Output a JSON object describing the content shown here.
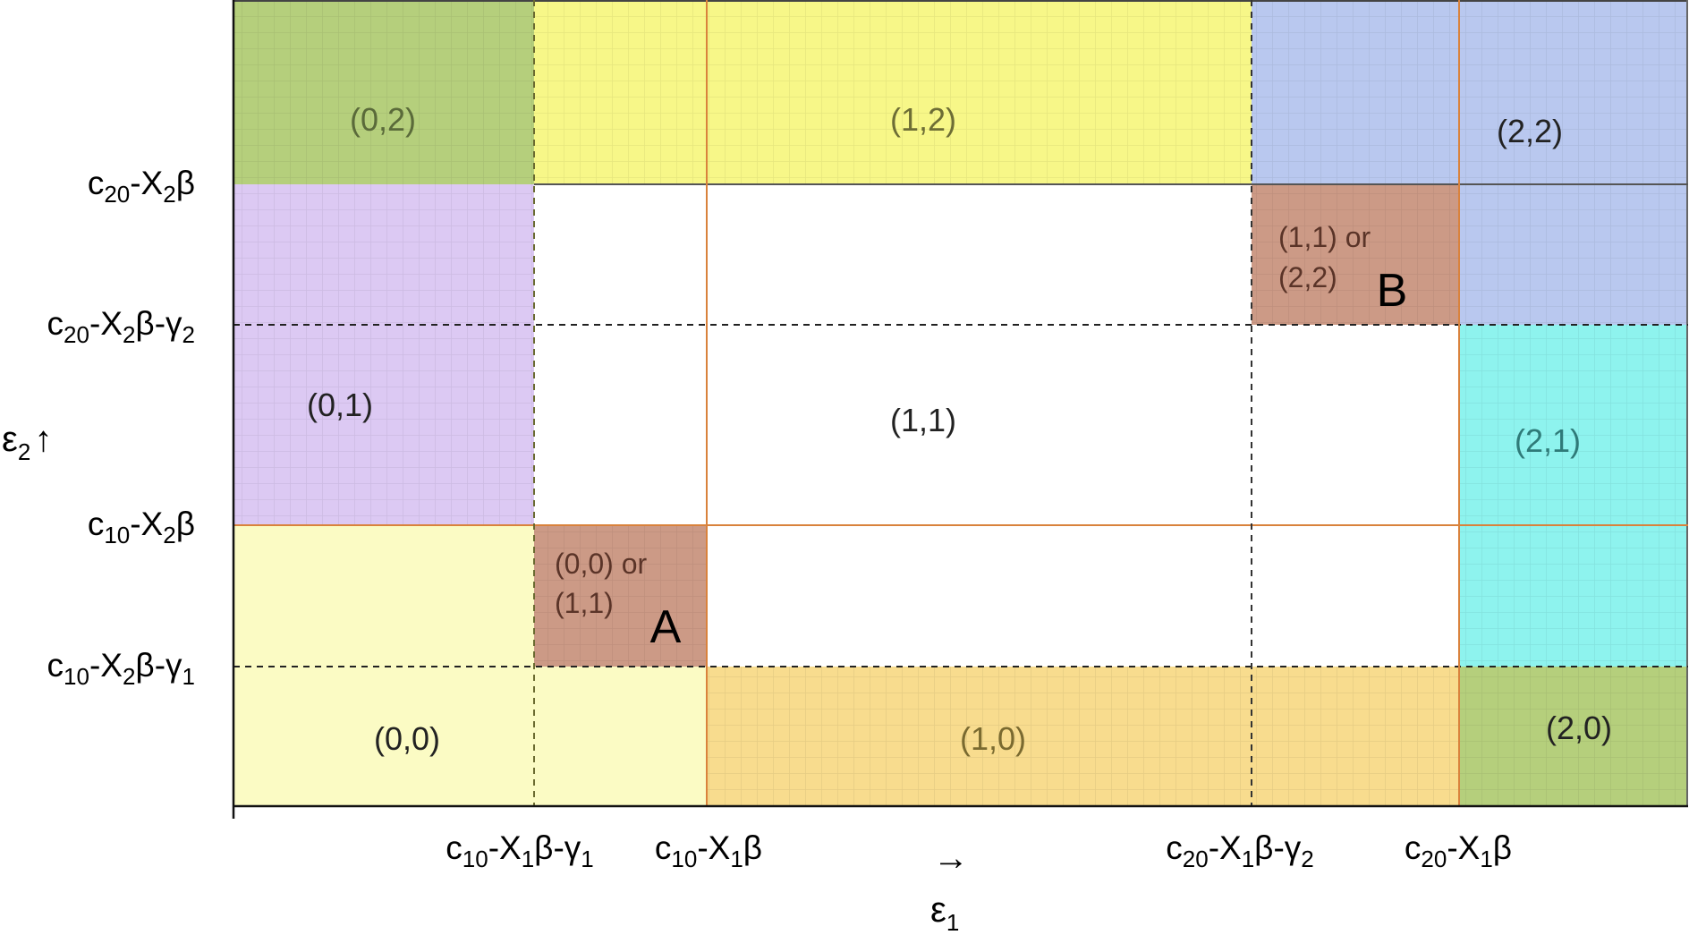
{
  "regions": {
    "r02": "(0,2)",
    "r12": "(1,2)",
    "r22": "(2,2)",
    "r01": "(0,1)",
    "r11": "(1,1)",
    "r21": "(2,1)",
    "r00": "(0,0)",
    "r10": "(1,0)",
    "r20": "(2,0)",
    "ambA_line1": "(0,0) or",
    "ambA_line2": "(1,1)",
    "ambB_line1": "(1,1) or",
    "ambB_line2": "(2,2)"
  },
  "corner_labels": {
    "A": "A",
    "B": "B"
  },
  "y_thresholds": [
    {
      "pre": "c",
      "s1": "20",
      "mid": "-X",
      "s2": "2",
      "post": "β"
    },
    {
      "pre": "c",
      "s1": "20",
      "mid": "-X",
      "s2": "2",
      "post": "β-γ",
      "s3": "2"
    },
    {
      "pre": "c",
      "s1": "10",
      "mid": "-X",
      "s2": "2",
      "post": "β"
    },
    {
      "pre": "c",
      "s1": "10",
      "mid": "-X",
      "s2": "2",
      "post": "β-γ",
      "s3": "1"
    }
  ],
  "x_thresholds": [
    {
      "pre": "c",
      "s1": "10",
      "mid": "-X",
      "s2": "1",
      "post": "β-γ",
      "s3": "1"
    },
    {
      "pre": "c",
      "s1": "10",
      "mid": "-X",
      "s2": "1",
      "post": "β"
    },
    {
      "pre": "c",
      "s1": "20",
      "mid": "-X",
      "s2": "1",
      "post": "β-γ",
      "s3": "2"
    },
    {
      "pre": "c",
      "s1": "20",
      "mid": "-X",
      "s2": "1",
      "post": "β"
    }
  ],
  "axes": {
    "y_label": "ε",
    "y_sub": "2",
    "y_arrow": "↑",
    "x_arrow": "→",
    "x_label": "ε",
    "x_sub": "1"
  },
  "colors": {
    "green": "#b5cf7c",
    "yellow": "#f7f788",
    "blue": "#b9c8ef",
    "purple": "#dcc9f3",
    "cyan": "#8ef3ee",
    "pale_yellow": "#fbfbc4",
    "orange": "#f8dc8e",
    "brown": "#cc9a86",
    "orange_line": "#d9823c"
  }
}
